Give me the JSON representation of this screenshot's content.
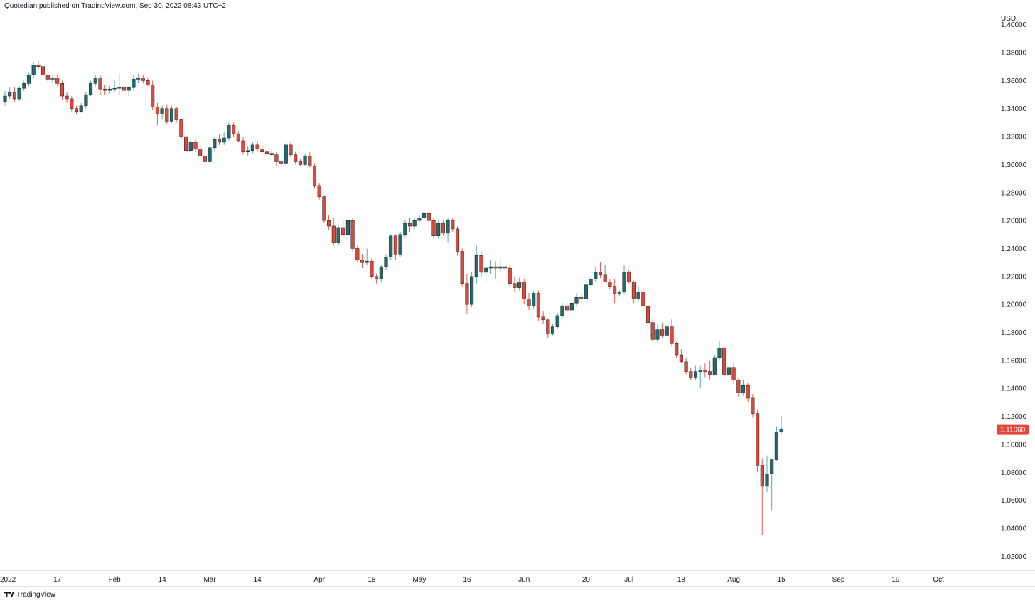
{
  "header": {
    "text": "Quotedian published on TradingView.com, Sep 30, 2022 08:43 UTC+2"
  },
  "footer": {
    "brand": "TradingView"
  },
  "colors": {
    "up": "#1f6b6f",
    "down": "#d9493d",
    "price_tag": "#e8463c",
    "wick_up": "#5fa8ac",
    "wick_down": "#e05f55"
  },
  "chart_data": {
    "type": "candlestick",
    "currency": "USD",
    "last_price": "1.11060",
    "ylim": [
      1.01,
      1.41
    ],
    "y_ticks": [
      "1.02000",
      "1.04000",
      "1.06000",
      "1.08000",
      "1.10000",
      "1.12000",
      "1.14000",
      "1.16000",
      "1.18000",
      "1.20000",
      "1.22000",
      "1.24000",
      "1.26000",
      "1.28000",
      "1.30000",
      "1.32000",
      "1.34000",
      "1.36000",
      "1.38000",
      "1.40000"
    ],
    "x_ticks": [
      {
        "label": "2022",
        "index": 0
      },
      {
        "label": "17",
        "index": 11
      },
      {
        "label": "Feb",
        "index": 23
      },
      {
        "label": "14",
        "index": 33
      },
      {
        "label": "Mar",
        "index": 43
      },
      {
        "label": "14",
        "index": 53
      },
      {
        "label": "Apr",
        "index": 66
      },
      {
        "label": "18",
        "index": 77
      },
      {
        "label": "May",
        "index": 87
      },
      {
        "label": "16",
        "index": 97
      },
      {
        "label": "Jun",
        "index": 109
      },
      {
        "label": "20",
        "index": 122
      },
      {
        "label": "Jul",
        "index": 131
      },
      {
        "label": "18",
        "index": 142
      },
      {
        "label": "Aug",
        "index": 153
      },
      {
        "label": "15",
        "index": 163
      },
      {
        "label": "Sep",
        "index": 175
      },
      {
        "label": "19",
        "index": 187
      },
      {
        "label": "Oct",
        "index": 196
      }
    ],
    "ohlc": [
      [
        1.345,
        1.3525,
        1.342,
        1.349
      ],
      [
        1.349,
        1.355,
        1.347,
        1.352
      ],
      [
        1.352,
        1.3555,
        1.345,
        1.347
      ],
      [
        1.347,
        1.356,
        1.3455,
        1.3545
      ],
      [
        1.3545,
        1.36,
        1.3525,
        1.358
      ],
      [
        1.358,
        1.366,
        1.356,
        1.364
      ],
      [
        1.364,
        1.3735,
        1.362,
        1.371
      ],
      [
        1.371,
        1.374,
        1.368,
        1.37
      ],
      [
        1.37,
        1.372,
        1.362,
        1.364
      ],
      [
        1.364,
        1.366,
        1.359,
        1.361
      ],
      [
        1.361,
        1.364,
        1.358,
        1.362
      ],
      [
        1.362,
        1.364,
        1.356,
        1.358
      ],
      [
        1.358,
        1.36,
        1.346,
        1.349
      ],
      [
        1.349,
        1.352,
        1.344,
        1.347
      ],
      [
        1.347,
        1.349,
        1.338,
        1.34
      ],
      [
        1.34,
        1.342,
        1.336,
        1.338
      ],
      [
        1.338,
        1.344,
        1.337,
        1.342
      ],
      [
        1.342,
        1.352,
        1.34,
        1.35
      ],
      [
        1.35,
        1.36,
        1.349,
        1.358
      ],
      [
        1.358,
        1.364,
        1.356,
        1.362
      ],
      [
        1.362,
        1.364,
        1.35,
        1.354
      ],
      [
        1.354,
        1.357,
        1.35,
        1.353
      ],
      [
        1.353,
        1.356,
        1.351,
        1.354
      ],
      [
        1.354,
        1.36,
        1.352,
        1.3545
      ],
      [
        1.3545,
        1.365,
        1.35,
        1.3555
      ],
      [
        1.3555,
        1.359,
        1.351,
        1.353
      ],
      [
        1.353,
        1.356,
        1.349,
        1.355
      ],
      [
        1.355,
        1.364,
        1.353,
        1.361
      ],
      [
        1.361,
        1.365,
        1.358,
        1.362
      ],
      [
        1.362,
        1.364,
        1.358,
        1.36
      ],
      [
        1.36,
        1.362,
        1.356,
        1.357
      ],
      [
        1.357,
        1.36,
        1.339,
        1.341
      ],
      [
        1.341,
        1.344,
        1.328,
        1.336
      ],
      [
        1.336,
        1.342,
        1.332,
        1.34
      ],
      [
        1.34,
        1.343,
        1.329,
        1.331
      ],
      [
        1.331,
        1.342,
        1.33,
        1.34
      ],
      [
        1.34,
        1.341,
        1.33,
        1.332
      ],
      [
        1.332,
        1.333,
        1.318,
        1.32
      ],
      [
        1.32,
        1.321,
        1.309,
        1.31
      ],
      [
        1.31,
        1.318,
        1.308,
        1.316
      ],
      [
        1.316,
        1.318,
        1.309,
        1.311
      ],
      [
        1.311,
        1.313,
        1.304,
        1.306
      ],
      [
        1.306,
        1.308,
        1.3,
        1.302
      ],
      [
        1.302,
        1.313,
        1.301,
        1.312
      ],
      [
        1.312,
        1.32,
        1.31,
        1.318
      ],
      [
        1.318,
        1.322,
        1.314,
        1.316
      ],
      [
        1.316,
        1.323,
        1.314,
        1.319
      ],
      [
        1.319,
        1.33,
        1.317,
        1.328
      ],
      [
        1.328,
        1.33,
        1.32,
        1.322
      ],
      [
        1.322,
        1.324,
        1.316,
        1.317
      ],
      [
        1.317,
        1.32,
        1.307,
        1.309
      ],
      [
        1.309,
        1.313,
        1.306,
        1.31
      ],
      [
        1.31,
        1.316,
        1.308,
        1.314
      ],
      [
        1.314,
        1.317,
        1.309,
        1.311
      ],
      [
        1.311,
        1.314,
        1.307,
        1.309
      ],
      [
        1.309,
        1.315,
        1.306,
        1.308
      ],
      [
        1.308,
        1.311,
        1.306,
        1.307
      ],
      [
        1.307,
        1.309,
        1.299,
        1.302
      ],
      [
        1.302,
        1.305,
        1.298,
        1.301
      ],
      [
        1.301,
        1.316,
        1.299,
        1.314
      ],
      [
        1.314,
        1.316,
        1.305,
        1.307
      ],
      [
        1.307,
        1.309,
        1.3,
        1.302
      ],
      [
        1.302,
        1.304,
        1.299,
        1.3
      ],
      [
        1.3,
        1.308,
        1.299,
        1.306
      ],
      [
        1.306,
        1.309,
        1.298,
        1.299
      ],
      [
        1.299,
        1.301,
        1.283,
        1.285
      ],
      [
        1.285,
        1.287,
        1.275,
        1.277
      ],
      [
        1.277,
        1.278,
        1.258,
        1.26
      ],
      [
        1.26,
        1.264,
        1.253,
        1.256
      ],
      [
        1.256,
        1.262,
        1.242,
        1.244
      ],
      [
        1.244,
        1.257,
        1.242,
        1.255
      ],
      [
        1.255,
        1.26,
        1.248,
        1.25
      ],
      [
        1.25,
        1.262,
        1.249,
        1.26
      ],
      [
        1.26,
        1.262,
        1.238,
        1.24
      ],
      [
        1.24,
        1.242,
        1.23,
        1.232
      ],
      [
        1.232,
        1.236,
        1.226,
        1.23
      ],
      [
        1.23,
        1.24,
        1.228,
        1.231
      ],
      [
        1.231,
        1.233,
        1.218,
        1.22
      ],
      [
        1.22,
        1.222,
        1.215,
        1.218
      ],
      [
        1.218,
        1.228,
        1.216,
        1.227
      ],
      [
        1.227,
        1.236,
        1.225,
        1.234
      ],
      [
        1.234,
        1.25,
        1.232,
        1.249
      ],
      [
        1.249,
        1.25,
        1.232,
        1.236
      ],
      [
        1.236,
        1.252,
        1.234,
        1.25
      ],
      [
        1.25,
        1.26,
        1.248,
        1.258
      ],
      [
        1.258,
        1.262,
        1.252,
        1.256
      ],
      [
        1.256,
        1.262,
        1.254,
        1.26
      ],
      [
        1.26,
        1.264,
        1.258,
        1.262
      ],
      [
        1.262,
        1.267,
        1.26,
        1.265
      ],
      [
        1.265,
        1.266,
        1.258,
        1.26
      ],
      [
        1.26,
        1.262,
        1.247,
        1.249
      ],
      [
        1.249,
        1.26,
        1.247,
        1.258
      ],
      [
        1.258,
        1.26,
        1.249,
        1.251
      ],
      [
        1.251,
        1.262,
        1.244,
        1.26
      ],
      [
        1.26,
        1.262,
        1.252,
        1.254
      ],
      [
        1.254,
        1.256,
        1.235,
        1.238
      ],
      [
        1.238,
        1.24,
        1.213,
        1.215
      ],
      [
        1.215,
        1.222,
        1.193,
        1.2
      ],
      [
        1.2,
        1.223,
        1.198,
        1.22
      ],
      [
        1.22,
        1.242,
        1.215,
        1.235
      ],
      [
        1.235,
        1.237,
        1.22,
        1.223
      ],
      [
        1.223,
        1.228,
        1.216,
        1.226
      ],
      [
        1.226,
        1.232,
        1.222,
        1.227
      ],
      [
        1.227,
        1.231,
        1.218,
        1.226
      ],
      [
        1.226,
        1.232,
        1.223,
        1.227
      ],
      [
        1.227,
        1.233,
        1.224,
        1.226
      ],
      [
        1.226,
        1.228,
        1.212,
        1.215
      ],
      [
        1.215,
        1.22,
        1.209,
        1.212
      ],
      [
        1.212,
        1.219,
        1.21,
        1.216
      ],
      [
        1.216,
        1.218,
        1.2,
        1.204
      ],
      [
        1.204,
        1.208,
        1.196,
        1.199
      ],
      [
        1.199,
        1.21,
        1.197,
        1.208
      ],
      [
        1.208,
        1.21,
        1.188,
        1.191
      ],
      [
        1.191,
        1.195,
        1.186,
        1.189
      ],
      [
        1.189,
        1.19,
        1.176,
        1.179
      ],
      [
        1.179,
        1.186,
        1.178,
        1.184
      ],
      [
        1.184,
        1.194,
        1.183,
        1.192
      ],
      [
        1.192,
        1.201,
        1.19,
        1.199
      ],
      [
        1.199,
        1.202,
        1.194,
        1.196
      ],
      [
        1.196,
        1.203,
        1.194,
        1.201
      ],
      [
        1.201,
        1.208,
        1.199,
        1.205
      ],
      [
        1.205,
        1.208,
        1.201,
        1.204
      ],
      [
        1.204,
        1.215,
        1.202,
        1.214
      ],
      [
        1.214,
        1.22,
        1.212,
        1.218
      ],
      [
        1.218,
        1.227,
        1.216,
        1.223
      ],
      [
        1.223,
        1.23,
        1.219,
        1.221
      ],
      [
        1.221,
        1.228,
        1.217,
        1.216
      ],
      [
        1.216,
        1.218,
        1.211,
        1.213
      ],
      [
        1.213,
        1.218,
        1.201,
        1.208
      ],
      [
        1.208,
        1.21,
        1.206,
        1.209
      ],
      [
        1.209,
        1.228,
        1.207,
        1.223
      ],
      [
        1.223,
        1.225,
        1.215,
        1.216
      ],
      [
        1.216,
        1.217,
        1.201,
        1.204
      ],
      [
        1.204,
        1.213,
        1.202,
        1.209
      ],
      [
        1.209,
        1.211,
        1.198,
        1.199
      ],
      [
        1.199,
        1.201,
        1.185,
        1.187
      ],
      [
        1.187,
        1.19,
        1.173,
        1.175
      ],
      [
        1.175,
        1.186,
        1.173,
        1.182
      ],
      [
        1.182,
        1.187,
        1.176,
        1.178
      ],
      [
        1.178,
        1.186,
        1.176,
        1.184
      ],
      [
        1.184,
        1.19,
        1.17,
        1.172
      ],
      [
        1.172,
        1.174,
        1.162,
        1.164
      ],
      [
        1.164,
        1.168,
        1.158,
        1.159
      ],
      [
        1.159,
        1.162,
        1.15,
        1.152
      ],
      [
        1.152,
        1.155,
        1.146,
        1.148
      ],
      [
        1.148,
        1.156,
        1.146,
        1.152
      ],
      [
        1.152,
        1.156,
        1.14,
        1.153
      ],
      [
        1.153,
        1.158,
        1.148,
        1.152
      ],
      [
        1.152,
        1.16,
        1.146,
        1.15
      ],
      [
        1.15,
        1.164,
        1.149,
        1.162
      ],
      [
        1.162,
        1.174,
        1.16,
        1.169
      ],
      [
        1.169,
        1.17,
        1.148,
        1.15
      ],
      [
        1.15,
        1.157,
        1.148,
        1.155
      ],
      [
        1.155,
        1.158,
        1.144,
        1.146
      ],
      [
        1.146,
        1.147,
        1.134,
        1.137
      ],
      [
        1.137,
        1.146,
        1.135,
        1.142
      ],
      [
        1.142,
        1.144,
        1.13,
        1.133
      ],
      [
        1.133,
        1.136,
        1.119,
        1.122
      ],
      [
        1.122,
        1.125,
        1.08,
        1.085
      ],
      [
        1.085,
        1.09,
        1.035,
        1.07
      ],
      [
        1.07,
        1.092,
        1.066,
        1.079
      ],
      [
        1.079,
        1.09,
        1.053,
        1.089
      ],
      [
        1.089,
        1.113,
        1.088,
        1.109
      ],
      [
        1.109,
        1.12,
        1.107,
        1.1106
      ]
    ]
  }
}
